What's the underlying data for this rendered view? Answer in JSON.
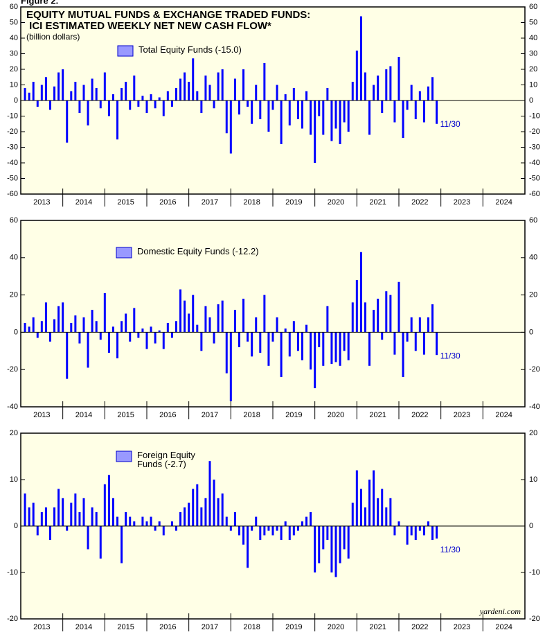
{
  "figure_label": "Figure 2.",
  "chart_data": [
    {
      "type": "bar",
      "title": "EQUITY MUTUAL FUNDS & EXCHANGE TRADED FUNDS:",
      "title_line2": " ICI ESTIMATED WEEKLY NET NEW CASH FLOW*",
      "subtitle": "(billion dollars)",
      "x": [
        2013.1,
        2013.2,
        2013.3,
        2013.4,
        2013.5,
        2013.6,
        2013.7,
        2013.8,
        2013.9,
        2014.0,
        2014.1,
        2014.2,
        2014.3,
        2014.4,
        2014.5,
        2014.6,
        2014.7,
        2014.8,
        2014.9,
        2015.0,
        2015.1,
        2015.2,
        2015.3,
        2015.4,
        2015.5,
        2015.6,
        2015.7,
        2015.8,
        2015.9,
        2016.0,
        2016.1,
        2016.2,
        2016.3,
        2016.4,
        2016.5,
        2016.6,
        2016.7,
        2016.8,
        2016.9,
        2017.0,
        2017.1,
        2017.2,
        2017.3,
        2017.4,
        2017.5,
        2017.6,
        2017.7,
        2017.8,
        2017.9,
        2018.0,
        2018.1,
        2018.2,
        2018.3,
        2018.4,
        2018.5,
        2018.6,
        2018.7,
        2018.8,
        2018.9,
        2019.0,
        2019.1,
        2019.2,
        2019.3,
        2019.4,
        2019.5,
        2019.6,
        2019.7,
        2019.8,
        2019.9,
        2020.0,
        2020.1,
        2020.2,
        2020.3,
        2020.4,
        2020.5,
        2020.6,
        2020.7,
        2020.8,
        2020.9,
        2021.0,
        2021.1,
        2021.2,
        2021.3,
        2021.4,
        2021.5,
        2021.6,
        2021.7,
        2021.8,
        2021.9,
        2022.0,
        2022.1,
        2022.2,
        2022.3,
        2022.4,
        2022.5,
        2022.6,
        2022.7,
        2022.8,
        2022.9
      ],
      "series": [
        {
          "name": "Total Equity Funds (-15.0)",
          "color": "#0000ff",
          "values": [
            8,
            5,
            12,
            -4,
            10,
            15,
            -6,
            9,
            18,
            20,
            -27,
            6,
            12,
            -8,
            10,
            -16,
            14,
            8,
            -5,
            18,
            -10,
            4,
            -25,
            8,
            12,
            -6,
            16,
            -4,
            3,
            -8,
            4,
            -5,
            2,
            -10,
            6,
            -4,
            8,
            14,
            18,
            12,
            27,
            6,
            -8,
            16,
            10,
            -5,
            18,
            20,
            -21,
            -34,
            14,
            -9,
            20,
            -4,
            -15,
            10,
            -12,
            24,
            -20,
            -6,
            10,
            -28,
            4,
            -16,
            8,
            -12,
            -18,
            6,
            -22,
            -40,
            -10,
            -22,
            8,
            -26,
            -18,
            -28,
            -14,
            -20,
            12,
            32,
            54,
            18,
            -22,
            10,
            16,
            -8,
            20,
            22,
            -14,
            28,
            -24,
            -6,
            10,
            -12,
            6,
            -14,
            9,
            15,
            -15.0
          ]
        }
      ],
      "annotation": "11/30",
      "xlim": [
        2013.0,
        2025.0
      ],
      "xticks": [
        {
          "value": 2013.5,
          "label": "2013"
        },
        {
          "value": 2014.5,
          "label": "2014"
        },
        {
          "value": 2015.5,
          "label": "2015"
        },
        {
          "value": 2016.5,
          "label": "2016"
        },
        {
          "value": 2017.5,
          "label": "2017"
        },
        {
          "value": 2018.5,
          "label": "2018"
        },
        {
          "value": 2019.5,
          "label": "2019"
        },
        {
          "value": 2020.5,
          "label": "2020"
        },
        {
          "value": 2021.5,
          "label": "2021"
        },
        {
          "value": 2022.5,
          "label": "2022"
        },
        {
          "value": 2023.5,
          "label": "2023"
        },
        {
          "value": 2024.5,
          "label": "2024"
        }
      ],
      "ylim": [
        -60,
        60
      ],
      "yticks": [
        -60,
        -50,
        -40,
        -30,
        -20,
        -10,
        0,
        10,
        20,
        30,
        40,
        50,
        60
      ]
    },
    {
      "type": "bar",
      "x": [
        2013.1,
        2013.2,
        2013.3,
        2013.4,
        2013.5,
        2013.6,
        2013.7,
        2013.8,
        2013.9,
        2014.0,
        2014.1,
        2014.2,
        2014.3,
        2014.4,
        2014.5,
        2014.6,
        2014.7,
        2014.8,
        2014.9,
        2015.0,
        2015.1,
        2015.2,
        2015.3,
        2015.4,
        2015.5,
        2015.6,
        2015.7,
        2015.8,
        2015.9,
        2016.0,
        2016.1,
        2016.2,
        2016.3,
        2016.4,
        2016.5,
        2016.6,
        2016.7,
        2016.8,
        2016.9,
        2017.0,
        2017.1,
        2017.2,
        2017.3,
        2017.4,
        2017.5,
        2017.6,
        2017.7,
        2017.8,
        2017.9,
        2018.0,
        2018.1,
        2018.2,
        2018.3,
        2018.4,
        2018.5,
        2018.6,
        2018.7,
        2018.8,
        2018.9,
        2019.0,
        2019.1,
        2019.2,
        2019.3,
        2019.4,
        2019.5,
        2019.6,
        2019.7,
        2019.8,
        2019.9,
        2020.0,
        2020.1,
        2020.2,
        2020.3,
        2020.4,
        2020.5,
        2020.6,
        2020.7,
        2020.8,
        2020.9,
        2021.0,
        2021.1,
        2021.2,
        2021.3,
        2021.4,
        2021.5,
        2021.6,
        2021.7,
        2021.8,
        2021.9,
        2022.0,
        2022.1,
        2022.2,
        2022.3,
        2022.4,
        2022.5,
        2022.6,
        2022.7,
        2022.8,
        2022.9
      ],
      "series": [
        {
          "name": "Domestic Equity Funds (-12.2)",
          "color": "#0000ff",
          "values": [
            5,
            3,
            8,
            -3,
            6,
            16,
            -5,
            7,
            14,
            16,
            -25,
            5,
            9,
            -6,
            8,
            -19,
            12,
            6,
            -4,
            21,
            -11,
            3,
            -14,
            6,
            10,
            -5,
            13,
            -3,
            2,
            -9,
            3,
            -6,
            1,
            -9,
            5,
            -3,
            6,
            23,
            17,
            10,
            20,
            4,
            -10,
            14,
            8,
            -6,
            15,
            17,
            -22,
            -37,
            12,
            -8,
            18,
            -5,
            -13,
            8,
            -11,
            20,
            -18,
            -5,
            8,
            -24,
            2,
            -13,
            6,
            -10,
            -15,
            4,
            -20,
            -30,
            -8,
            -18,
            14,
            -17,
            -16,
            -18,
            -10,
            -15,
            16,
            28,
            43,
            16,
            -18,
            12,
            18,
            -4,
            22,
            20,
            -12,
            27,
            -24,
            -5,
            8,
            -10,
            8,
            -12,
            8,
            15,
            -12.2
          ]
        }
      ],
      "annotation": "11/30",
      "xlim": [
        2013.0,
        2025.0
      ],
      "xticks": [
        {
          "value": 2013.5,
          "label": "2013"
        },
        {
          "value": 2014.5,
          "label": "2014"
        },
        {
          "value": 2015.5,
          "label": "2015"
        },
        {
          "value": 2016.5,
          "label": "2016"
        },
        {
          "value": 2017.5,
          "label": "2017"
        },
        {
          "value": 2018.5,
          "label": "2018"
        },
        {
          "value": 2019.5,
          "label": "2019"
        },
        {
          "value": 2020.5,
          "label": "2020"
        },
        {
          "value": 2021.5,
          "label": "2021"
        },
        {
          "value": 2022.5,
          "label": "2022"
        },
        {
          "value": 2023.5,
          "label": "2023"
        },
        {
          "value": 2024.5,
          "label": "2024"
        }
      ],
      "ylim": [
        -40,
        60
      ],
      "yticks": [
        -40,
        -20,
        0,
        20,
        40,
        60
      ]
    },
    {
      "type": "bar",
      "x": [
        2013.1,
        2013.2,
        2013.3,
        2013.4,
        2013.5,
        2013.6,
        2013.7,
        2013.8,
        2013.9,
        2014.0,
        2014.1,
        2014.2,
        2014.3,
        2014.4,
        2014.5,
        2014.6,
        2014.7,
        2014.8,
        2014.9,
        2015.0,
        2015.1,
        2015.2,
        2015.3,
        2015.4,
        2015.5,
        2015.6,
        2015.7,
        2015.8,
        2015.9,
        2016.0,
        2016.1,
        2016.2,
        2016.3,
        2016.4,
        2016.5,
        2016.6,
        2016.7,
        2016.8,
        2016.9,
        2017.0,
        2017.1,
        2017.2,
        2017.3,
        2017.4,
        2017.5,
        2017.6,
        2017.7,
        2017.8,
        2017.9,
        2018.0,
        2018.1,
        2018.2,
        2018.3,
        2018.4,
        2018.5,
        2018.6,
        2018.7,
        2018.8,
        2018.9,
        2019.0,
        2019.1,
        2019.2,
        2019.3,
        2019.4,
        2019.5,
        2019.6,
        2019.7,
        2019.8,
        2019.9,
        2020.0,
        2020.1,
        2020.2,
        2020.3,
        2020.4,
        2020.5,
        2020.6,
        2020.7,
        2020.8,
        2020.9,
        2021.0,
        2021.1,
        2021.2,
        2021.3,
        2021.4,
        2021.5,
        2021.6,
        2021.7,
        2021.8,
        2021.9,
        2022.0,
        2022.1,
        2022.2,
        2022.3,
        2022.4,
        2022.5,
        2022.6,
        2022.7,
        2022.8,
        2022.9
      ],
      "series": [
        {
          "name": "Foreign Equity Funds (-2.7)",
          "color": "#0000ff",
          "values": [
            7,
            4,
            5,
            -2,
            3,
            4,
            -3,
            4,
            8,
            6,
            -1,
            5,
            7,
            3,
            6,
            -5,
            4,
            3,
            -7,
            9,
            11,
            6,
            2,
            -8,
            3,
            2,
            1,
            0,
            2,
            1,
            2,
            -1,
            1,
            -2,
            0,
            1,
            -1,
            3,
            4,
            5,
            8,
            9,
            4,
            6,
            14,
            10,
            6,
            7,
            2,
            -1,
            3,
            -2,
            -4,
            -9,
            -1,
            2,
            -3,
            -2,
            -1,
            -2,
            -1,
            -3,
            1,
            -3,
            -2,
            -1,
            1,
            2,
            3,
            -10,
            -8,
            -5,
            -3,
            -10,
            -11,
            -8,
            -5,
            -7,
            5,
            12,
            8,
            4,
            10,
            12,
            6,
            8,
            4,
            6,
            -2,
            1,
            0,
            -4,
            -2,
            -3,
            -1,
            -2,
            1,
            -3,
            -2.7
          ]
        }
      ],
      "annotation": "11/30",
      "source": "yardeni.com",
      "xlim": [
        2013.0,
        2025.0
      ],
      "xticks": [
        {
          "value": 2013.5,
          "label": "2013"
        },
        {
          "value": 2014.5,
          "label": "2014"
        },
        {
          "value": 2015.5,
          "label": "2015"
        },
        {
          "value": 2016.5,
          "label": "2016"
        },
        {
          "value": 2017.5,
          "label": "2017"
        },
        {
          "value": 2018.5,
          "label": "2018"
        },
        {
          "value": 2019.5,
          "label": "2019"
        },
        {
          "value": 2020.5,
          "label": "2020"
        },
        {
          "value": 2021.5,
          "label": "2021"
        },
        {
          "value": 2022.5,
          "label": "2022"
        },
        {
          "value": 2023.5,
          "label": "2023"
        },
        {
          "value": 2024.5,
          "label": "2024"
        }
      ],
      "ylim": [
        -20,
        20
      ],
      "yticks": [
        -20,
        -10,
        0,
        10,
        20
      ]
    }
  ]
}
